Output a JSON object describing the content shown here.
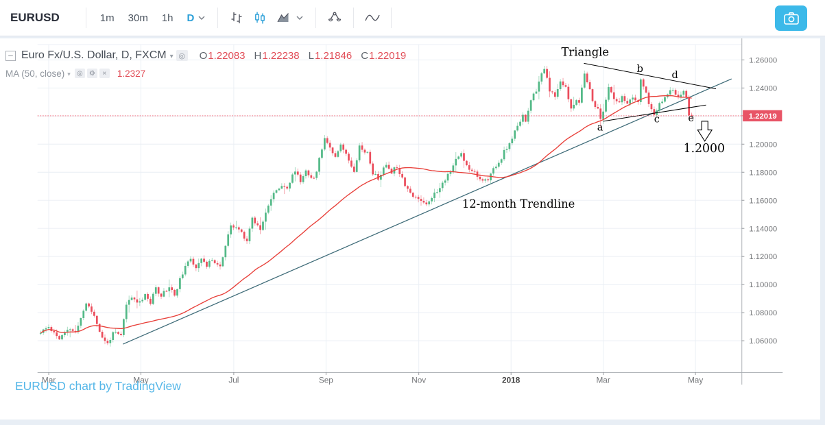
{
  "toolbar": {
    "symbol": "EURUSD",
    "intervals": [
      "1m",
      "30m",
      "1h",
      "D"
    ],
    "active_interval": "D"
  },
  "legend": {
    "title": "Euro Fx/U.S. Dollar, D, FXCM",
    "ohlc_labels": [
      "O",
      "H",
      "L",
      "C"
    ],
    "ohlc_values": [
      "1.22083",
      "1.22238",
      "1.21846",
      "1.22019"
    ],
    "collapse_glyph": "–",
    "visibility_glyph": "◎",
    "settings_glyph": "⚙",
    "close_glyph": "×",
    "caret_glyph": "▾",
    "ma_label": "MA (50, close)",
    "ma_value": "1.2327"
  },
  "watermark": "EURUSD chart by TradingView",
  "chart_data": {
    "type": "candlestick",
    "symbol": "EURUSD",
    "description": "Euro Fx/U.S. Dollar, D, FXCM",
    "interval": "D",
    "exchange": "FXCM",
    "ohlc_last_bar": {
      "open": 1.22083,
      "high": 1.22238,
      "low": 1.21846,
      "close": 1.22019
    },
    "ma50_value": 1.2327,
    "last_price": 1.22019,
    "last_price_label": "1.22019",
    "y_axis": {
      "range": [
        1.045,
        1.275
      ],
      "ticks": [
        {
          "value": 1.26,
          "label": "1.26000",
          "show": true
        },
        {
          "value": 1.24,
          "label": "1.24000",
          "show": true
        },
        {
          "value": 1.22,
          "label": "1.22000",
          "show": false
        },
        {
          "value": 1.2,
          "label": "1.20000",
          "show": true
        },
        {
          "value": 1.18,
          "label": "1.18000",
          "show": true
        },
        {
          "value": 1.16,
          "label": "1.16000",
          "show": true
        },
        {
          "value": 1.14,
          "label": "1.14000",
          "show": true
        },
        {
          "value": 1.12,
          "label": "1.12000",
          "show": true
        },
        {
          "value": 1.1,
          "label": "1.10000",
          "show": true
        },
        {
          "value": 1.08,
          "label": "1.08000",
          "show": true
        },
        {
          "value": 1.06,
          "label": "1.06000",
          "show": true
        }
      ]
    },
    "x_axis": {
      "labels": [
        "Mar",
        "May",
        "Jul",
        "Sep",
        "Nov",
        "2018",
        "Mar",
        "May"
      ],
      "bold_label": "2018",
      "grid": true
    },
    "annotations": {
      "triangle_label": "Triangle",
      "point_labels": [
        "a",
        "b",
        "c",
        "d",
        "e"
      ],
      "trendline_label": "12-month Trendline",
      "target_label": "1.2000"
    },
    "drawings": {
      "trendline": {
        "price_start": 1.0576,
        "price_end": 1.2465
      },
      "triangle_upper": {
        "price_start": 1.2585,
        "price_end": 1.2395
      },
      "triangle_lower": {
        "price_start": 1.2165,
        "price_end": 1.2285
      }
    },
    "price_path_anchors": [
      [
        0,
        1.0655
      ],
      [
        3,
        1.07
      ],
      [
        7,
        1.0615
      ],
      [
        11,
        1.0685
      ],
      [
        13,
        1.0655
      ],
      [
        17,
        1.087
      ],
      [
        20,
        1.078
      ],
      [
        23,
        1.0615
      ],
      [
        25,
        1.058
      ],
      [
        27,
        1.0655
      ],
      [
        30,
        1.0635
      ],
      [
        32,
        1.086
      ],
      [
        34,
        1.0905
      ],
      [
        37,
        1.0875
      ],
      [
        39,
        1.0935
      ],
      [
        41,
        1.0865
      ],
      [
        43,
        1.0975
      ],
      [
        45,
        1.0925
      ],
      [
        48,
        1.0985
      ],
      [
        50,
        1.0925
      ],
      [
        53,
        1.1085
      ],
      [
        56,
        1.1185
      ],
      [
        58,
        1.1125
      ],
      [
        60,
        1.1195
      ],
      [
        62,
        1.1125
      ],
      [
        64,
        1.1185
      ],
      [
        67,
        1.1125
      ],
      [
        69,
        1.1275
      ],
      [
        71,
        1.1415
      ],
      [
        74,
        1.1395
      ],
      [
        77,
        1.1315
      ],
      [
        79,
        1.1475
      ],
      [
        82,
        1.1395
      ],
      [
        84,
        1.1525
      ],
      [
        87,
        1.1645
      ],
      [
        90,
        1.1715
      ],
      [
        92,
        1.1685
      ],
      [
        95,
        1.1815
      ],
      [
        97,
        1.1735
      ],
      [
        99,
        1.1815
      ],
      [
        102,
        1.1745
      ],
      [
        105,
        1.1965
      ],
      [
        106,
        1.2055
      ],
      [
        108,
        1.1975
      ],
      [
        110,
        1.1915
      ],
      [
        112,
        1.2005
      ],
      [
        115,
        1.1885
      ],
      [
        117,
        1.1815
      ],
      [
        119,
        1.1985
      ],
      [
        122,
        1.1935
      ],
      [
        124,
        1.1795
      ],
      [
        126,
        1.1755
      ],
      [
        129,
        1.1855
      ],
      [
        131,
        1.1805
      ],
      [
        133,
        1.1845
      ],
      [
        136,
        1.1715
      ],
      [
        139,
        1.1625
      ],
      [
        142,
        1.1605
      ],
      [
        144,
        1.1575
      ],
      [
        146,
        1.1625
      ],
      [
        149,
        1.1685
      ],
      [
        152,
        1.1785
      ],
      [
        155,
        1.1885
      ],
      [
        157,
        1.1935
      ],
      [
        159,
        1.1845
      ],
      [
        162,
        1.1805
      ],
      [
        164,
        1.1755
      ],
      [
        167,
        1.1735
      ],
      [
        169,
        1.1825
      ],
      [
        171,
        1.1865
      ],
      [
        173,
        1.1945
      ],
      [
        175,
        1.1995
      ],
      [
        176,
        1.2045
      ],
      [
        178,
        1.2125
      ],
      [
        180,
        1.2215
      ],
      [
        181,
        1.2165
      ],
      [
        183,
        1.2305
      ],
      [
        185,
        1.2385
      ],
      [
        186,
        1.2445
      ],
      [
        188,
        1.2535
      ],
      [
        189,
        1.2465
      ],
      [
        190,
        1.2385
      ],
      [
        192,
        1.2325
      ],
      [
        194,
        1.2455
      ],
      [
        196,
        1.2405
      ],
      [
        197,
        1.2315
      ],
      [
        198,
        1.2255
      ],
      [
        200,
        1.2325
      ],
      [
        201,
        1.2285
      ],
      [
        203,
        1.2505
      ],
      [
        205,
        1.2405
      ],
      [
        206,
        1.2295
      ],
      [
        208,
        1.2255
      ],
      [
        209,
        1.2165
      ],
      [
        211,
        1.2315
      ],
      [
        212,
        1.2405
      ],
      [
        214,
        1.2315
      ],
      [
        216,
        1.2285
      ],
      [
        217,
        1.2355
      ],
      [
        219,
        1.2275
      ],
      [
        221,
        1.2335
      ],
      [
        223,
        1.2285
      ],
      [
        224,
        1.2455
      ],
      [
        226,
        1.2375
      ],
      [
        227,
        1.2285
      ],
      [
        229,
        1.2195
      ],
      [
        231,
        1.2285
      ],
      [
        233,
        1.2325
      ],
      [
        234,
        1.2365
      ],
      [
        236,
        1.2385
      ],
      [
        238,
        1.2335
      ],
      [
        240,
        1.2385
      ],
      [
        241,
        1.2325
      ],
      [
        242,
        1.2205
      ],
      [
        243,
        1.2202
      ]
    ],
    "colors": {
      "up": "#53b987",
      "down": "#eb4d5c",
      "ma": "#e8403a",
      "trendline": "#3e6b78",
      "drawing": "#000000",
      "last_price_line": "#ef6071",
      "badge": "#e85466",
      "grid": "#e9eef4",
      "axis_text": "#737578",
      "accent_blue": "#2a9fd8",
      "camera": "#3cb9e9",
      "watermark": "#56b7e8"
    }
  }
}
